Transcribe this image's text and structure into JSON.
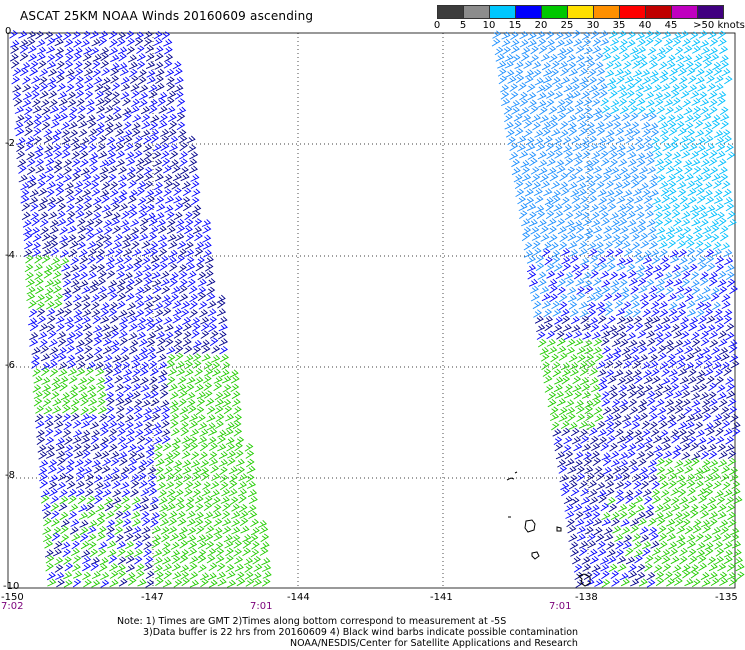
{
  "title": "ASCAT 25KM NOAA Winds 20160609 ascending",
  "colorbar": {
    "labels": [
      "0",
      "5",
      "10",
      "15",
      "20",
      "25",
      "30",
      "35",
      "40",
      "45",
      ">50 knots"
    ],
    "colors": [
      "#3c3c3c",
      "#8c8c8c",
      "#00c8ff",
      "#0000ff",
      "#00c800",
      "#ffe000",
      "#ff9000",
      "#ff0000",
      "#c00000",
      "#c000c0",
      "#400080"
    ]
  },
  "map": {
    "lat_labels": [
      "0",
      "-2",
      "-4",
      "-6",
      "-8",
      "-10"
    ],
    "lon_labels": [
      "-150",
      "-147",
      "-144",
      "-141",
      "-138",
      "-135"
    ],
    "times": [
      "7:02",
      "7:01",
      "7:01"
    ],
    "swath_colors": {
      "dark_blue": "#00008b",
      "blue": "#0000ff",
      "light_blue": "#1e90ff",
      "cyan": "#00bfff",
      "green": "#22cc00"
    }
  },
  "notes": {
    "line1": "Note: 1) Times are GMT 2)Times along bottom correspond to measurement at -5S",
    "line2": "3)Data buffer is 22 hrs from 20160609 4) Black wind barbs indicate possible contamination",
    "line3": "NOAA/NESDIS/Center for Satellite Applications and Research"
  }
}
